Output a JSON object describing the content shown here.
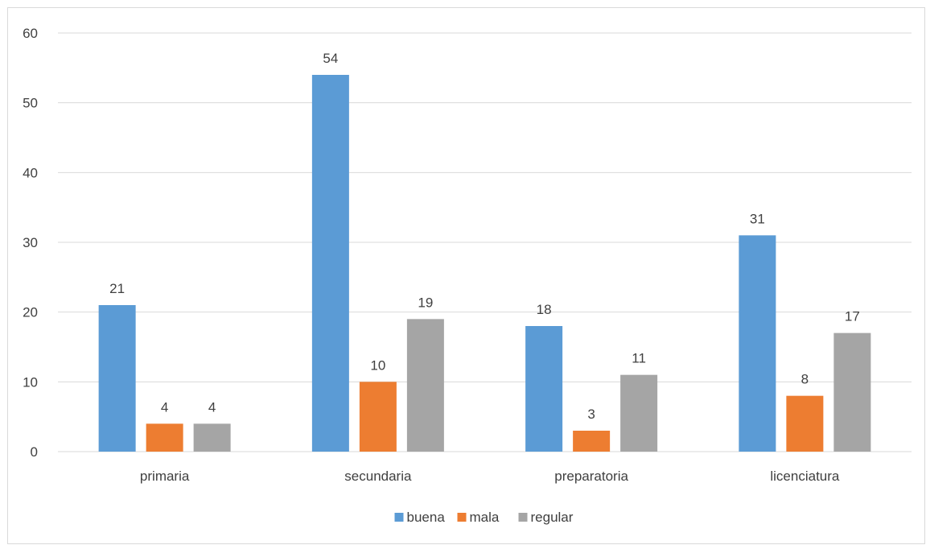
{
  "chart_data": {
    "type": "bar",
    "categories": [
      "primaria",
      "secundaria",
      "preparatoria",
      "licenciatura"
    ],
    "series": [
      {
        "name": "buena",
        "values": [
          21,
          54,
          18,
          31
        ],
        "color": "#5b9bd5"
      },
      {
        "name": "mala",
        "values": [
          4,
          10,
          3,
          8
        ],
        "color": "#ed7d31"
      },
      {
        "name": "regular",
        "values": [
          4,
          19,
          11,
          17
        ],
        "color": "#a5a5a5"
      }
    ],
    "title": "",
    "xlabel": "",
    "ylabel": "",
    "ylim": [
      0,
      60
    ],
    "yticks": [
      0,
      10,
      20,
      30,
      40,
      50,
      60
    ],
    "grid": true,
    "legend_position": "bottom",
    "gridline_color": "#d9d9d9",
    "axis_color": "#d9d9d9"
  }
}
